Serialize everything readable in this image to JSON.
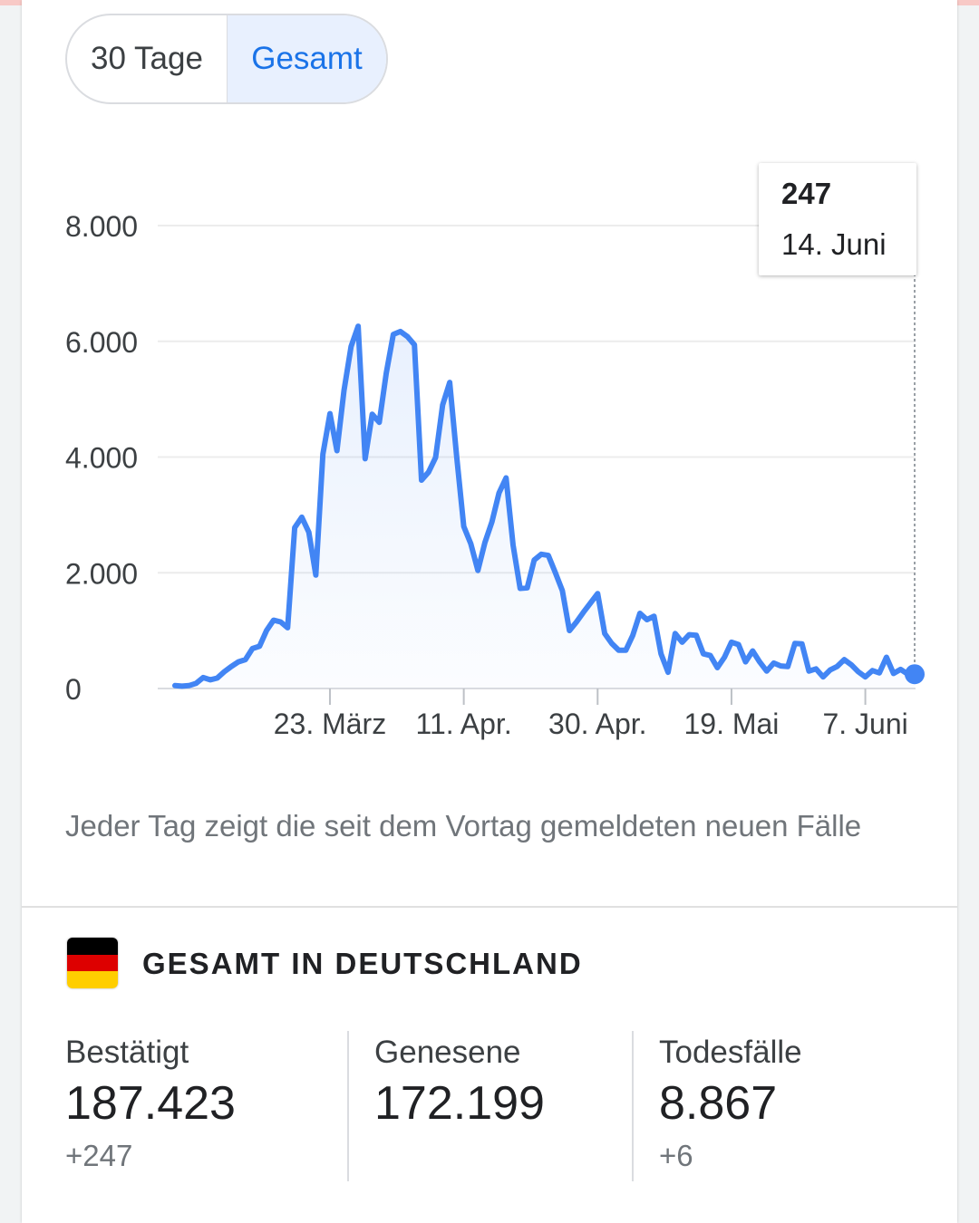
{
  "toggle": {
    "option_30": "30 Tage",
    "option_total": "Gesamt",
    "selected": "Gesamt"
  },
  "chart_data": {
    "type": "area",
    "yticks": [
      "8.000",
      "6.000",
      "4.000",
      "2.000",
      "0"
    ],
    "ytick_values": [
      8000,
      6000,
      4000,
      2000,
      0
    ],
    "xtick_labels": [
      "23. März",
      "11. Apr.",
      "30. Apr.",
      "19. Mai",
      "7. Juni"
    ],
    "xtick_days": [
      23,
      42,
      61,
      80,
      99
    ],
    "ylim": [
      0,
      8000
    ],
    "grid": true,
    "line_color": "#4285f4",
    "x_days_from": 1,
    "x_days_to": 106,
    "values": [
      50,
      40,
      50,
      90,
      190,
      150,
      180,
      290,
      380,
      460,
      500,
      690,
      730,
      1000,
      1180,
      1150,
      1050,
      2780,
      2960,
      2700,
      1960,
      4050,
      4750,
      4110,
      5150,
      5910,
      6260,
      3970,
      4740,
      4600,
      5450,
      6120,
      6170,
      6080,
      5940,
      3600,
      3740,
      3990,
      4900,
      5290,
      3990,
      2800,
      2500,
      2040,
      2520,
      2880,
      3380,
      3640,
      2480,
      1730,
      1740,
      2220,
      2320,
      2300,
      2000,
      1690,
      1000,
      1150,
      1320,
      1480,
      1640,
      950,
      780,
      660,
      660,
      920,
      1300,
      1190,
      1250,
      600,
      280,
      950,
      800,
      930,
      920,
      600,
      570,
      360,
      540,
      800,
      760,
      460,
      650,
      460,
      300,
      440,
      390,
      380,
      780,
      770,
      300,
      340,
      200,
      320,
      380,
      500,
      410,
      290,
      200,
      310,
      270,
      540,
      260,
      330,
      250,
      247
    ],
    "highlight": {
      "value": "247",
      "date": "14. Juni"
    }
  },
  "note": "Jeder Tag zeigt die seit dem Vortag gemeldeten neuen Fälle",
  "summary": {
    "title": "GESAMT IN DEUTSCHLAND",
    "flag_colors": [
      "#000000",
      "#dd0000",
      "#ffce00"
    ],
    "stats": [
      {
        "label": "Bestätigt",
        "value": "187.423",
        "delta": "+247"
      },
      {
        "label": "Genesene",
        "value": "172.199",
        "delta": ""
      },
      {
        "label": "Todesfälle",
        "value": "8.867",
        "delta": "+6"
      }
    ]
  }
}
